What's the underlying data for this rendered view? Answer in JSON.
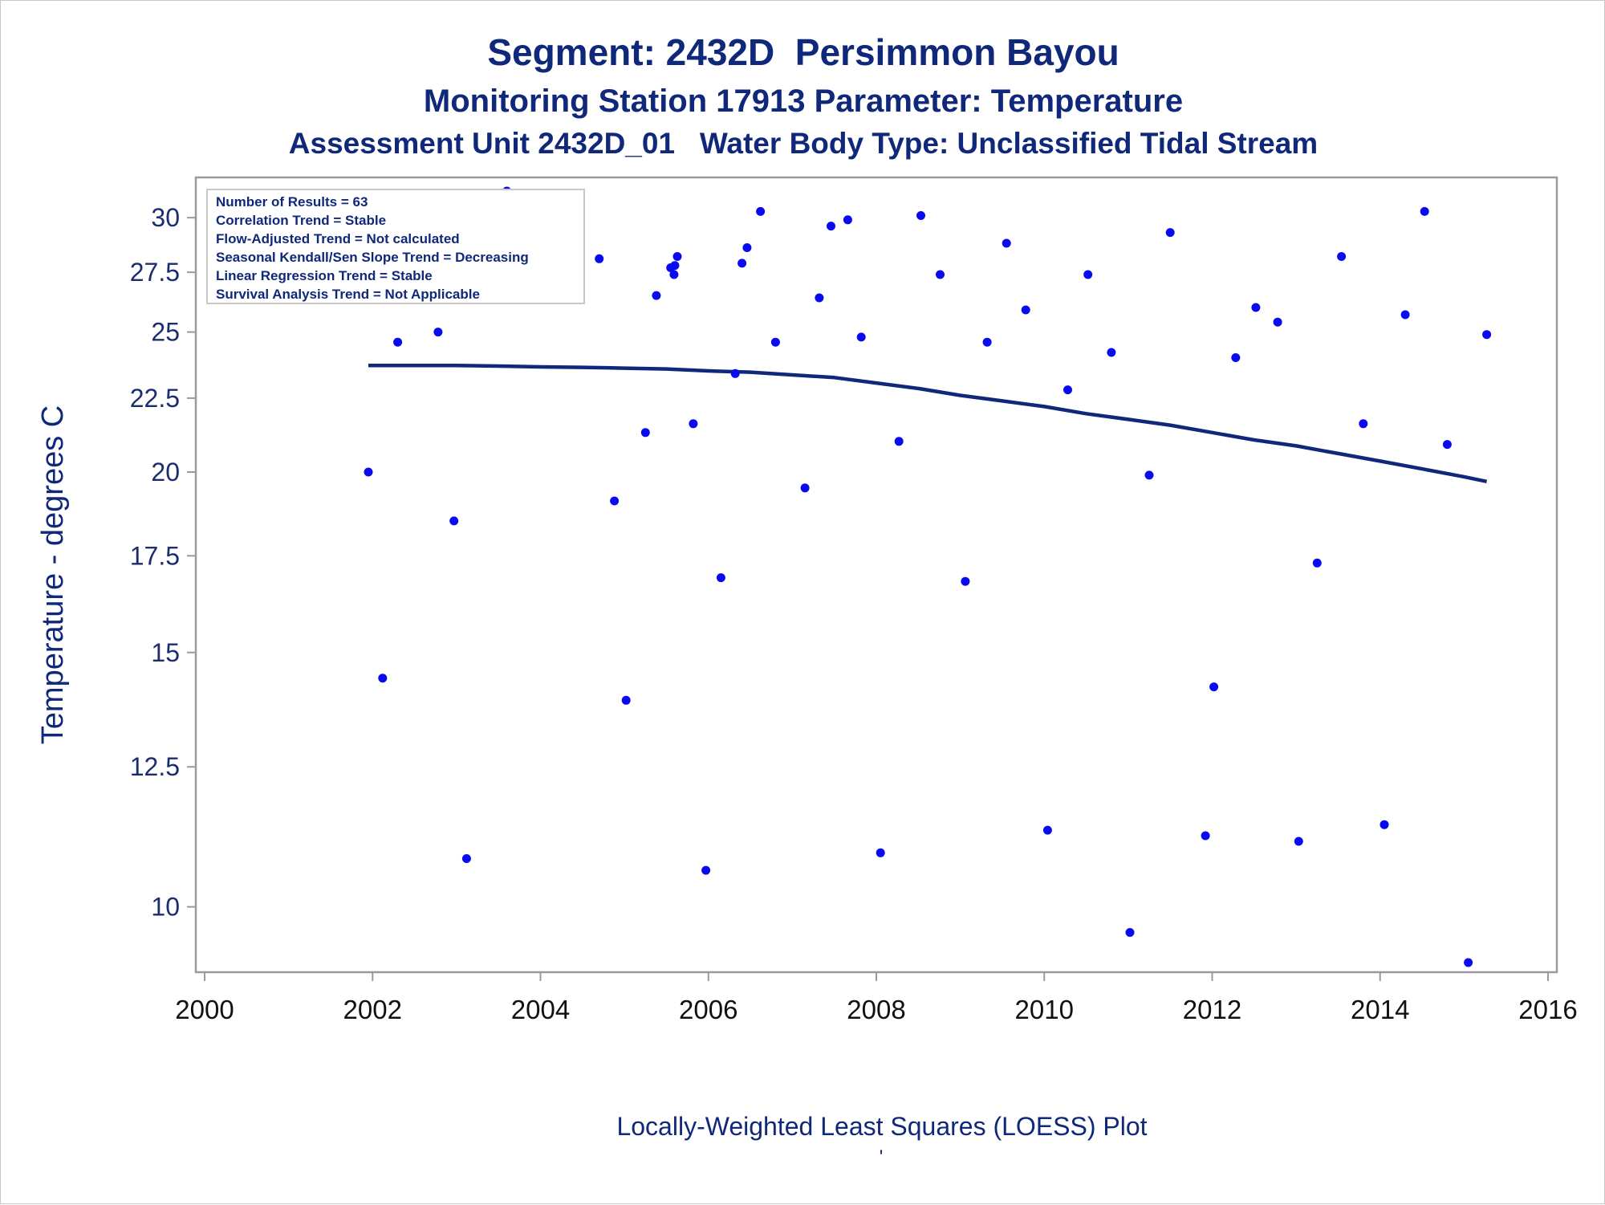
{
  "chart_data": {
    "type": "scatter",
    "title": "Segment: 2432D  Persimmon Bayou",
    "subtitle": "Monitoring Station 17913 Parameter: Temperature",
    "subtitle2": "Assessment Unit 2432D_01   Water Body Type: Unclassified Tidal Stream",
    "xlabel": "",
    "ylabel": "Temperature - degrees C",
    "footnote": "Locally-Weighted Least Squares (LOESS) Plot",
    "footnote_mark": "'",
    "y_scale": "log",
    "xlim": [
      2000,
      2016
    ],
    "ylim": [
      9.15,
      31.3
    ],
    "x_ticks": [
      2000,
      2002,
      2004,
      2006,
      2008,
      2010,
      2012,
      2014,
      2016
    ],
    "x_tick_labels": [
      "2000",
      "2002",
      "2004",
      "2006",
      "2008",
      "2010",
      "2012",
      "2014",
      "2016"
    ],
    "y_ticks": [
      10,
      12.5,
      15,
      17.5,
      20,
      22.5,
      25,
      27.5,
      30
    ],
    "y_tick_labels": [
      "10",
      "12.5",
      "15",
      "17.5",
      "20",
      "22.5",
      "25",
      "27.5",
      "30"
    ],
    "grid": false,
    "legend_placement": "top-left",
    "stats_box": [
      "Number of Results = 63",
      "Correlation Trend = Stable",
      "Flow-Adjusted Trend = Not calculated",
      "Seasonal Kendall/Sen Slope Trend = Decreasing",
      "Linear Regression Trend = Stable",
      "Survival Analysis Trend = Not Applicable"
    ],
    "colors": {
      "points": "#0a0af0",
      "loess_line": "#10287a",
      "text": "#10287a",
      "axis": "#9a9a9a"
    },
    "series": [
      {
        "kind": "points",
        "points": [
          [
            2001.95,
            20.0
          ],
          [
            2002.12,
            14.4
          ],
          [
            2002.3,
            24.6
          ],
          [
            2002.45,
            28.5
          ],
          [
            2002.58,
            29.7
          ],
          [
            2002.78,
            25.0
          ],
          [
            2002.97,
            18.5
          ],
          [
            2003.12,
            10.8
          ],
          [
            2003.42,
            27.9
          ],
          [
            2003.6,
            31.3
          ],
          [
            2003.65,
            29.2
          ],
          [
            2004.7,
            28.1
          ],
          [
            2004.88,
            19.1
          ],
          [
            2005.02,
            13.9
          ],
          [
            2005.25,
            21.3
          ],
          [
            2005.38,
            26.5
          ],
          [
            2005.55,
            27.7
          ],
          [
            2005.59,
            27.4
          ],
          [
            2005.6,
            27.8
          ],
          [
            2005.63,
            28.2
          ],
          [
            2005.82,
            21.6
          ],
          [
            2005.97,
            10.6
          ],
          [
            2006.15,
            16.9
          ],
          [
            2006.32,
            23.4
          ],
          [
            2006.4,
            27.9
          ],
          [
            2006.46,
            28.6
          ],
          [
            2006.62,
            30.3
          ],
          [
            2006.8,
            24.6
          ],
          [
            2007.15,
            19.5
          ],
          [
            2007.32,
            26.4
          ],
          [
            2007.46,
            29.6
          ],
          [
            2007.66,
            29.9
          ],
          [
            2007.82,
            24.8
          ],
          [
            2008.05,
            10.9
          ],
          [
            2008.27,
            21.0
          ],
          [
            2008.53,
            30.1
          ],
          [
            2008.76,
            27.4
          ],
          [
            2009.06,
            16.8
          ],
          [
            2009.32,
            24.6
          ],
          [
            2009.55,
            28.8
          ],
          [
            2009.78,
            25.9
          ],
          [
            2010.04,
            11.3
          ],
          [
            2010.28,
            22.8
          ],
          [
            2010.52,
            27.4
          ],
          [
            2010.8,
            24.2
          ],
          [
            2011.02,
            9.6
          ],
          [
            2011.25,
            19.9
          ],
          [
            2011.5,
            29.3
          ],
          [
            2011.92,
            11.2
          ],
          [
            2012.02,
            14.2
          ],
          [
            2012.28,
            24.0
          ],
          [
            2012.52,
            26.0
          ],
          [
            2012.78,
            25.4
          ],
          [
            2013.03,
            11.1
          ],
          [
            2013.25,
            17.3
          ],
          [
            2013.54,
            28.2
          ],
          [
            2013.8,
            21.6
          ],
          [
            2014.05,
            11.4
          ],
          [
            2014.3,
            25.7
          ],
          [
            2014.53,
            30.3
          ],
          [
            2014.8,
            20.9
          ],
          [
            2015.05,
            9.15
          ],
          [
            2015.27,
            24.9
          ]
        ]
      },
      {
        "kind": "loess",
        "points": [
          [
            2001.95,
            23.7
          ],
          [
            2002.5,
            23.7
          ],
          [
            2003.0,
            23.7
          ],
          [
            2003.5,
            23.68
          ],
          [
            2004.0,
            23.65
          ],
          [
            2004.5,
            23.63
          ],
          [
            2005.0,
            23.6
          ],
          [
            2005.5,
            23.57
          ],
          [
            2006.0,
            23.5
          ],
          [
            2006.5,
            23.45
          ],
          [
            2007.0,
            23.35
          ],
          [
            2007.5,
            23.25
          ],
          [
            2008.0,
            23.05
          ],
          [
            2008.5,
            22.85
          ],
          [
            2009.0,
            22.6
          ],
          [
            2009.5,
            22.4
          ],
          [
            2010.0,
            22.2
          ],
          [
            2010.5,
            21.95
          ],
          [
            2011.0,
            21.75
          ],
          [
            2011.5,
            21.55
          ],
          [
            2012.0,
            21.3
          ],
          [
            2012.5,
            21.05
          ],
          [
            2013.0,
            20.85
          ],
          [
            2013.5,
            20.6
          ],
          [
            2014.0,
            20.35
          ],
          [
            2014.5,
            20.1
          ],
          [
            2015.0,
            19.85
          ],
          [
            2015.27,
            19.7
          ]
        ]
      }
    ]
  }
}
